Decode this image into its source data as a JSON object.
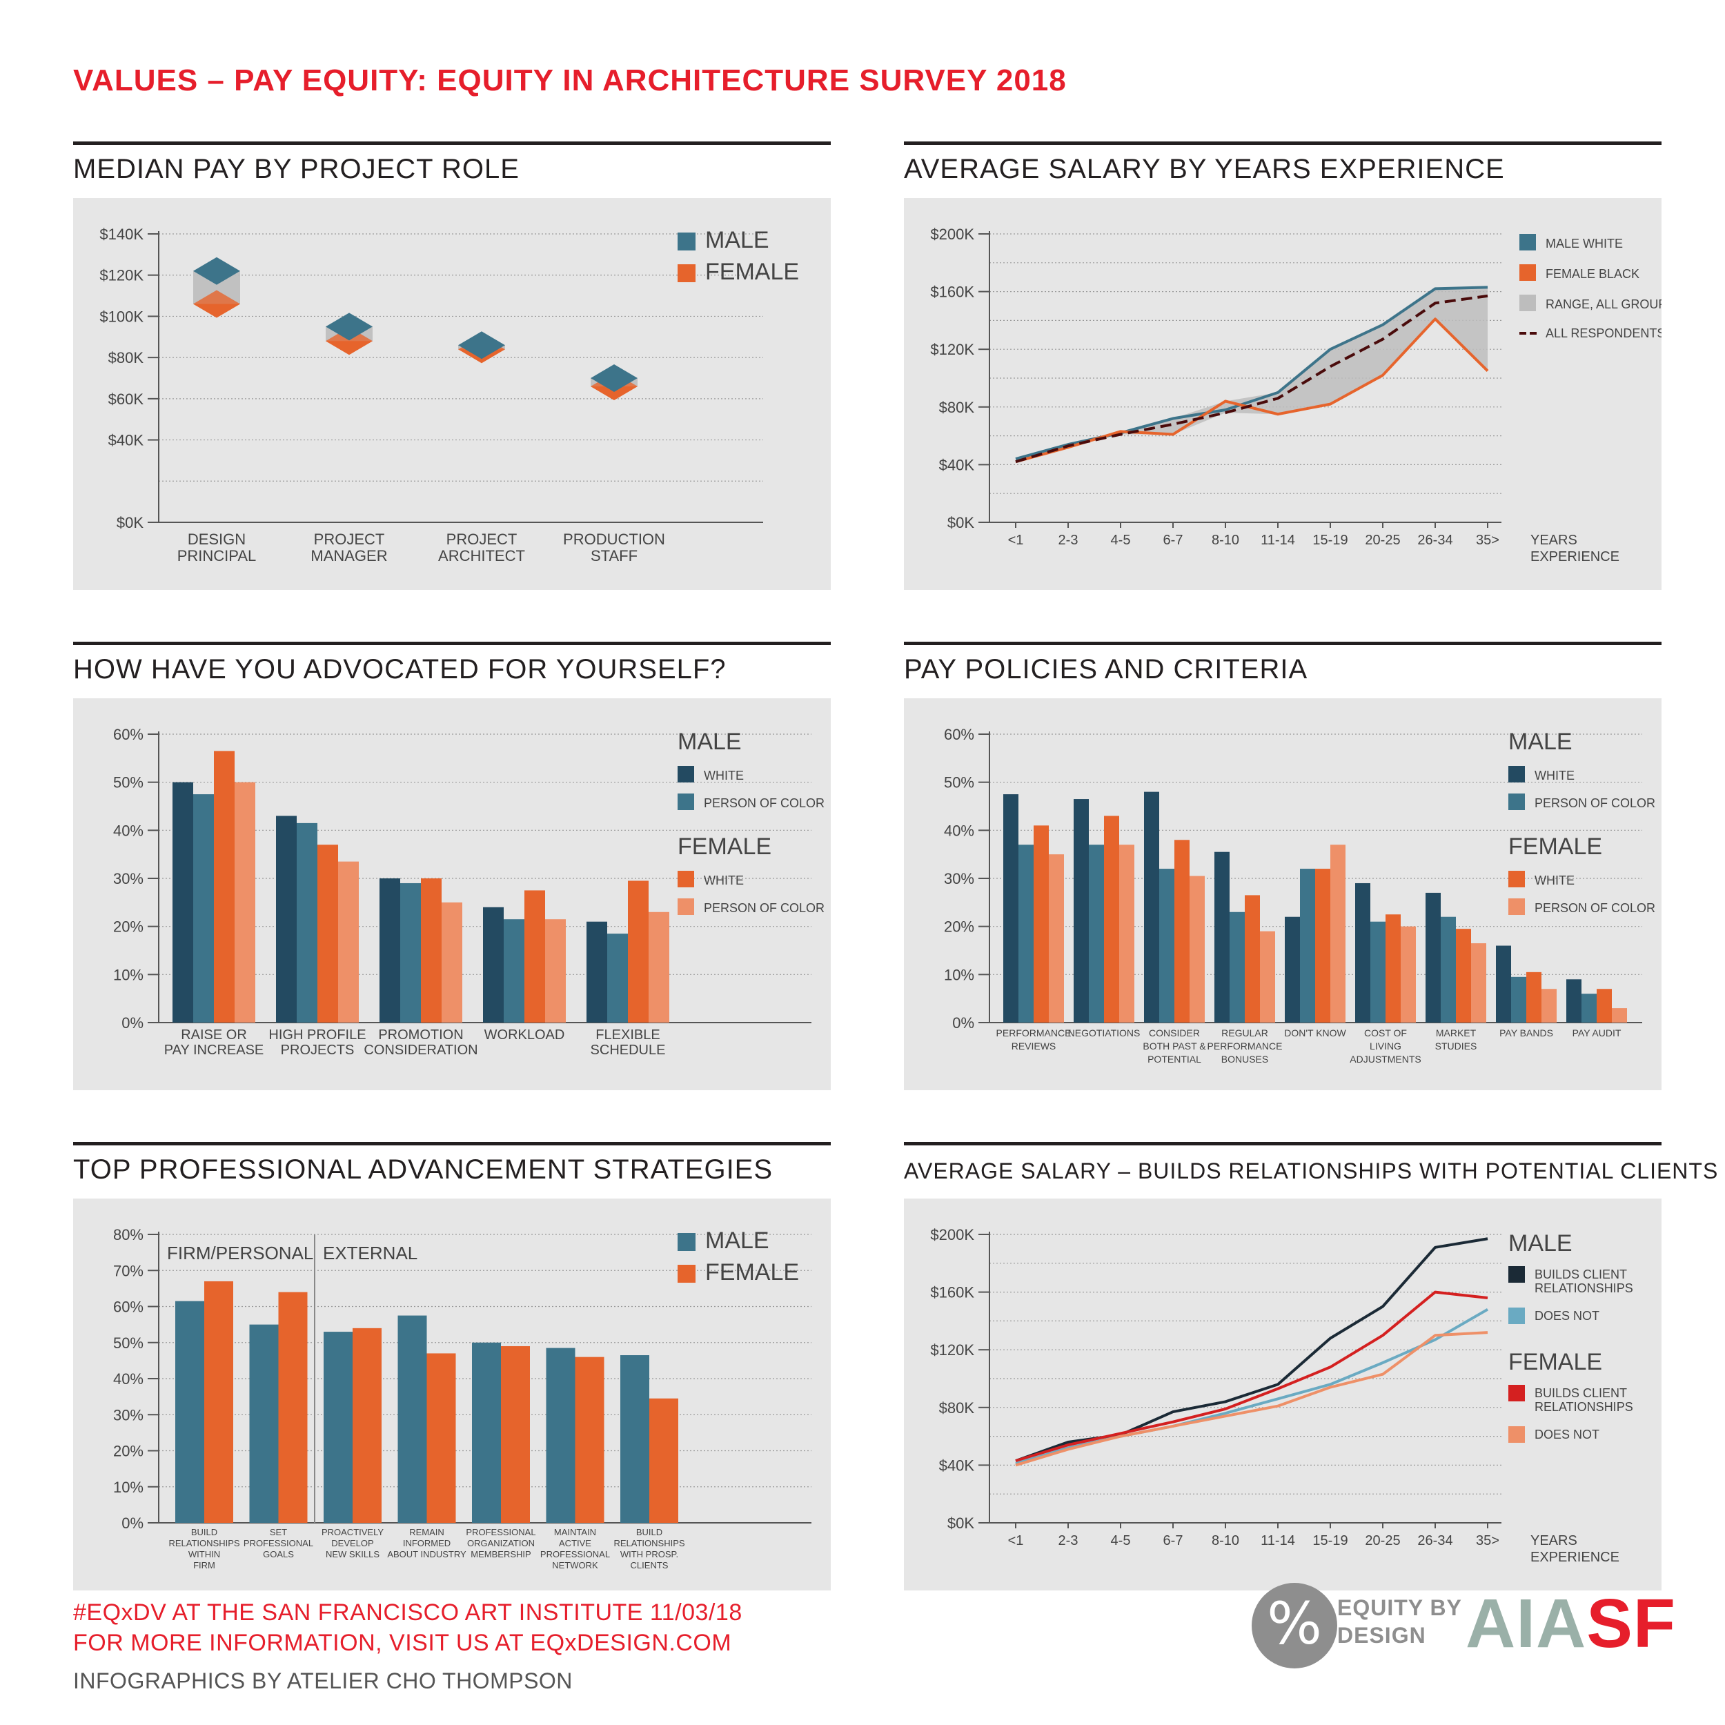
{
  "title": "VALUES – PAY EQUITY: EQUITY IN ARCHITECTURE SURVEY 2018",
  "colors": {
    "male": "#3d748a",
    "male_white": "#234a61",
    "male_poc": "#3d748a",
    "female": "#e6642c",
    "female_white": "#e6642c",
    "female_poc": "#ee9068",
    "range": "#bdbdbd",
    "all": "#4a0b0b",
    "male_builds": "#1b2a36",
    "male_not": "#6aaac2",
    "female_builds": "#d42020",
    "female_not": "#ee9068"
  },
  "sections": {
    "median_pay": "MEDIAN PAY BY PROJECT ROLE",
    "avg_salary": "AVERAGE SALARY BY YEARS EXPERIENCE",
    "advocated": "HOW HAVE YOU ADVOCATED FOR YOURSELF?",
    "policies": "PAY POLICIES AND CRITERIA",
    "strategies": "TOP PROFESSIONAL ADVANCEMENT STRATEGIES",
    "relationships": "AVERAGE SALARY – BUILDS RELATIONSHIPS WITH POTENTIAL CLIENTS"
  },
  "chart_data": [
    {
      "id": "median_pay",
      "type": "scatter",
      "title": "MEDIAN PAY BY PROJECT ROLE",
      "categories": [
        [
          "DESIGN",
          "PRINCIPAL"
        ],
        [
          "PROJECT",
          "MANAGER"
        ],
        [
          "PROJECT",
          "ARCHITECT"
        ],
        [
          "PRODUCTION",
          "STAFF"
        ]
      ],
      "series": [
        {
          "name": "MALE",
          "color_key": "male",
          "values": [
            122,
            95,
            86,
            70
          ]
        },
        {
          "name": "FEMALE",
          "color_key": "female",
          "values": [
            106,
            88,
            84,
            66
          ]
        }
      ],
      "ylim": [
        0,
        140
      ],
      "yticks": [
        0,
        20,
        40,
        60,
        80,
        100,
        120,
        140
      ],
      "ytick_labels": [
        "$0K",
        "$40K",
        "$60K",
        "$80K",
        "$100K",
        "$120K",
        "$140K"
      ],
      "ytick_label_values": [
        0,
        40,
        60,
        80,
        100,
        120,
        140
      ]
    },
    {
      "id": "avg_salary",
      "type": "line",
      "title": "AVERAGE SALARY BY YEARS EXPERIENCE",
      "categories": [
        "<1",
        "2-3",
        "4-5",
        "6-7",
        "8-10",
        "11-14",
        "15-19",
        "20-25",
        "26-34",
        "35>"
      ],
      "xlabel": [
        "YEARS",
        "EXPERIENCE"
      ],
      "series": [
        {
          "name": "MALE WHITE",
          "color_key": "male",
          "values": [
            44,
            54,
            62,
            72,
            78,
            90,
            120,
            137,
            162,
            163
          ]
        },
        {
          "name": "FEMALE BLACK",
          "color_key": "female",
          "values": [
            42,
            52,
            63,
            61,
            84,
            75,
            82,
            102,
            141,
            105
          ]
        },
        {
          "name": "ALL RESPONDENTS",
          "color_key": "all",
          "dashed": true,
          "values": [
            42,
            53,
            61,
            68,
            76,
            86,
            108,
            127,
            152,
            157
          ]
        }
      ],
      "range_label": "RANGE, ALL GROUPS",
      "range_low": [
        42,
        52,
        61,
        61,
        76,
        75,
        82,
        102,
        141,
        105
      ],
      "range_high": [
        44,
        54,
        63,
        72,
        84,
        90,
        120,
        137,
        162,
        163
      ],
      "ylim": [
        0,
        200
      ],
      "ytick_labels": [
        "$0K",
        "$40K",
        "$80K",
        "$120K",
        "$160K",
        "$200K"
      ],
      "ytick_label_values": [
        0,
        40,
        80,
        120,
        160,
        200
      ],
      "grid_values": [
        0,
        20,
        40,
        60,
        80,
        100,
        120,
        140,
        160,
        180,
        200
      ]
    },
    {
      "id": "advocated",
      "type": "bar",
      "title": "HOW HAVE YOU ADVOCATED FOR YOURSELF?",
      "categories": [
        [
          "RAISE OR",
          "PAY INCREASE"
        ],
        [
          "HIGH PROFILE",
          "PROJECTS"
        ],
        [
          "PROMOTION",
          "CONSIDERATION"
        ],
        [
          "WORKLOAD"
        ],
        [
          "FLEXIBLE",
          "SCHEDULE"
        ]
      ],
      "legend_groups": [
        {
          "title": "MALE",
          "items": [
            "WHITE",
            "PERSON OF COLOR"
          ]
        },
        {
          "title": "FEMALE",
          "items": [
            "WHITE",
            "PERSON OF COLOR"
          ]
        }
      ],
      "series": [
        {
          "name": "MALE WHITE",
          "color_key": "male_white",
          "values": [
            50,
            43,
            30,
            24,
            21
          ]
        },
        {
          "name": "MALE PERSON OF COLOR",
          "color_key": "male_poc",
          "values": [
            47.5,
            41.5,
            29,
            21.5,
            18.5
          ]
        },
        {
          "name": "FEMALE WHITE",
          "color_key": "female_white",
          "values": [
            56.5,
            37,
            30,
            27.5,
            29.5
          ]
        },
        {
          "name": "FEMALE PERSON OF COLOR",
          "color_key": "female_poc",
          "values": [
            50,
            33.5,
            25,
            21.5,
            23
          ]
        }
      ],
      "ylim": [
        0,
        60
      ],
      "ytick_labels": [
        "0%",
        "10%",
        "20%",
        "30%",
        "40%",
        "50%",
        "60%"
      ],
      "ytick_label_values": [
        0,
        10,
        20,
        30,
        40,
        50,
        60
      ]
    },
    {
      "id": "policies",
      "type": "bar",
      "title": "PAY POLICIES AND CRITERIA",
      "categories": [
        [
          "PERFORMANCE",
          "REVIEWS"
        ],
        [
          "NEGOTIATIONS"
        ],
        [
          "CONSIDER",
          "BOTH PAST &",
          "POTENTIAL"
        ],
        [
          "REGULAR",
          "PERFORMANCE",
          "BONUSES"
        ],
        [
          "DON'T KNOW"
        ],
        [
          "COST OF",
          "LIVING",
          "ADJUSTMENTS"
        ],
        [
          "MARKET",
          "STUDIES"
        ],
        [
          "PAY BANDS"
        ],
        [
          "PAY AUDIT"
        ]
      ],
      "legend_groups": [
        {
          "title": "MALE",
          "items": [
            "WHITE",
            "PERSON OF COLOR"
          ]
        },
        {
          "title": "FEMALE",
          "items": [
            "WHITE",
            "PERSON OF COLOR"
          ]
        }
      ],
      "series": [
        {
          "name": "MALE WHITE",
          "color_key": "male_white",
          "values": [
            47.5,
            46.5,
            48,
            35.5,
            22,
            29,
            27,
            16,
            9
          ]
        },
        {
          "name": "MALE PERSON OF COLOR",
          "color_key": "male_poc",
          "values": [
            37,
            37,
            32,
            23,
            32,
            21,
            22,
            9.5,
            6
          ]
        },
        {
          "name": "FEMALE WHITE",
          "color_key": "female_white",
          "values": [
            41,
            43,
            38,
            26.5,
            32,
            22.5,
            19.5,
            10.5,
            7
          ]
        },
        {
          "name": "FEMALE PERSON OF COLOR",
          "color_key": "female_poc",
          "values": [
            35,
            37,
            30.5,
            19,
            37,
            20,
            16.5,
            7,
            3
          ]
        }
      ],
      "ylim": [
        0,
        60
      ],
      "ytick_labels": [
        "0%",
        "10%",
        "20%",
        "30%",
        "40%",
        "50%",
        "60%"
      ],
      "ytick_label_values": [
        0,
        10,
        20,
        30,
        40,
        50,
        60
      ]
    },
    {
      "id": "strategies",
      "type": "bar",
      "title": "TOP PROFESSIONAL ADVANCEMENT STRATEGIES",
      "groups": [
        "FIRM/PERSONAL",
        "EXTERNAL"
      ],
      "categories": [
        [
          "BUILD",
          "RELATIONSHIPS",
          "WITHIN",
          "FIRM"
        ],
        [
          "SET",
          "PROFESSIONAL",
          "GOALS"
        ],
        [
          "PROACTIVELY",
          "DEVELOP",
          "NEW SKILLS"
        ],
        [
          "REMAIN",
          "INFORMED",
          "ABOUT INDUSTRY"
        ],
        [
          "PROFESSIONAL",
          "ORGANIZATION",
          "MEMBERSHIP"
        ],
        [
          "MAINTAIN",
          "ACTIVE",
          "PROFESSIONAL",
          "NETWORK"
        ],
        [
          "BUILD",
          "RELATIONSHIPS",
          "WITH PROSP.",
          "CLIENTS"
        ]
      ],
      "series": [
        {
          "name": "MALE",
          "color_key": "male",
          "values": [
            61.5,
            55,
            53,
            57.5,
            50,
            48.5,
            46.5
          ]
        },
        {
          "name": "FEMALE",
          "color_key": "female",
          "values": [
            67,
            64,
            54,
            47,
            49,
            46,
            34.5
          ]
        }
      ],
      "ylim": [
        0,
        80
      ],
      "ytick_labels": [
        "0%",
        "10%",
        "20%",
        "30%",
        "40%",
        "50%",
        "60%",
        "70%",
        "80%"
      ],
      "ytick_label_values": [
        0,
        10,
        20,
        30,
        40,
        50,
        60,
        70,
        80
      ]
    },
    {
      "id": "relationships",
      "type": "line",
      "title": "AVERAGE SALARY – BUILDS RELATIONSHIPS WITH POTENTIAL CLIENTS",
      "categories": [
        "<1",
        "2-3",
        "4-5",
        "6-7",
        "8-10",
        "11-14",
        "15-19",
        "20-25",
        "26-34",
        "35>"
      ],
      "xlabel": [
        "YEARS",
        "EXPERIENCE"
      ],
      "legend_groups": [
        {
          "title": "MALE",
          "items": [
            [
              "BUILDS CLIENT",
              "RELATIONSHIPS"
            ],
            [
              "DOES NOT"
            ]
          ]
        },
        {
          "title": "FEMALE",
          "items": [
            [
              "BUILDS CLIENT",
              "RELATIONSHIPS"
            ],
            [
              "DOES NOT"
            ]
          ]
        }
      ],
      "series": [
        {
          "name": "MALE BUILDS CLIENT RELATIONSHIPS",
          "color_key": "male_builds",
          "values": [
            43,
            56,
            61,
            77,
            84,
            96,
            128,
            150,
            191,
            197
          ]
        },
        {
          "name": "MALE DOES NOT",
          "color_key": "male_not",
          "values": [
            41,
            52,
            60,
            67,
            76,
            86,
            96,
            111,
            127,
            148
          ]
        },
        {
          "name": "FEMALE BUILDS CLIENT RELATIONSHIPS",
          "color_key": "female_builds",
          "values": [
            43,
            54,
            62,
            70,
            79,
            93,
            108,
            130,
            160,
            156
          ]
        },
        {
          "name": "FEMALE DOES NOT",
          "color_key": "female_not",
          "values": [
            40,
            51,
            60,
            67,
            74,
            81,
            94,
            103,
            130,
            132
          ]
        }
      ],
      "ylim": [
        0,
        200
      ],
      "ytick_labels": [
        "$0K",
        "$40K",
        "$80K",
        "$120K",
        "$160K",
        "$200K"
      ],
      "ytick_label_values": [
        0,
        40,
        80,
        120,
        160,
        200
      ],
      "grid_values": [
        0,
        20,
        40,
        60,
        80,
        100,
        120,
        140,
        160,
        180,
        200
      ]
    }
  ],
  "footer": {
    "line1": "#EQxDV AT THE SAN FRANCISCO ART INSTITUTE 11/03/18",
    "line2": "FOR MORE INFORMATION, VISIT US AT EQxDESIGN.COM",
    "line3": "INFOGRAPHICS BY ATELIER CHO THOMPSON"
  },
  "logos": {
    "percent_symbol": "%",
    "equity_line1": "EQUITY BY",
    "equity_line2": "DESIGN",
    "aia_gray": "AIA",
    "aia_red": "SF"
  }
}
